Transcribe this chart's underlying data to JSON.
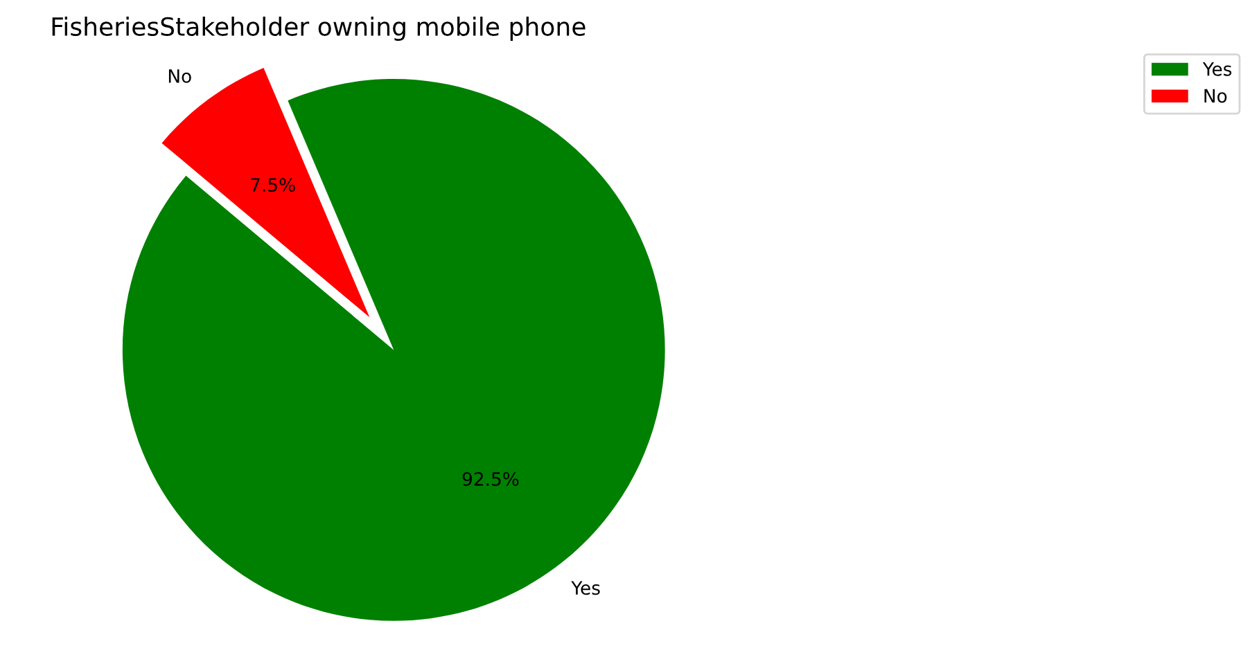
{
  "chart_data": {
    "type": "pie",
    "title": "FisheriesStakeholder owning mobile phone",
    "categories": [
      "Yes",
      "No"
    ],
    "values": [
      92.5,
      7.5
    ],
    "colors": [
      "#008000",
      "#ff0000"
    ],
    "value_labels": [
      "92.5%",
      "7.5%"
    ],
    "legend": "top right"
  }
}
